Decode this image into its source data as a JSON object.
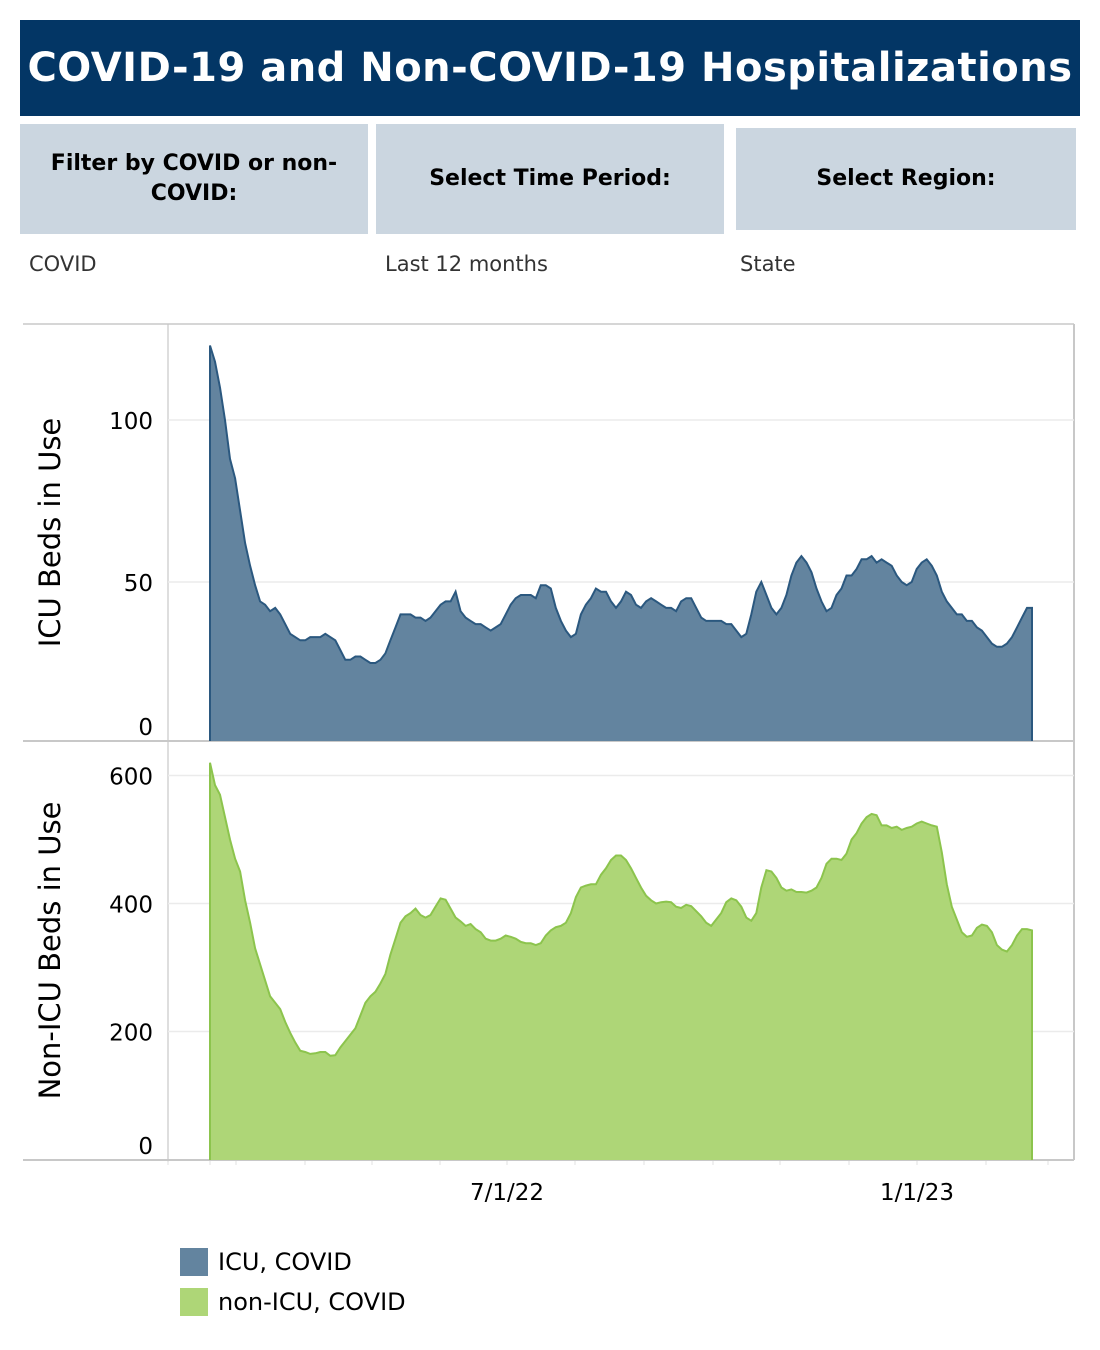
{
  "header": {
    "title": "COVID-19 and Non-COVID-19 Hospitalizations"
  },
  "filters": [
    {
      "label": "Filter by COVID or non-COVID:",
      "value": "COVID"
    },
    {
      "label": "Select Time Period:",
      "value": "Last 12 months"
    },
    {
      "label": "Select Region:",
      "value": "State"
    }
  ],
  "legend": [
    {
      "label": "ICU, COVID",
      "color": "#63849f"
    },
    {
      "label": "non-ICU, COVID",
      "color": "#aed677"
    }
  ],
  "colors": {
    "header_bg": "#033665",
    "filter_bg": "#cbd6e0",
    "icu_fill": "#63849f",
    "icu_line": "#2b587f",
    "nonicu_fill": "#aed677",
    "nonicu_line": "#8cc44d",
    "gridline": "#ebebeb",
    "frame": "#c8c8c8"
  },
  "chart_data": {
    "type": "area",
    "title": "COVID-19 and Non-COVID-19 Hospitalizations",
    "xlabel": "",
    "x_tick_labels": [
      "7/1/22",
      "1/1/23"
    ],
    "x_range_approx": [
      "2/18/22",
      "2/22/23"
    ],
    "x_sampling": "uniform, approximately every 2.2 days from 2/18/22 to 2/21/23",
    "legend_position": "bottom-left",
    "grid": true,
    "panels": [
      {
        "name": "ICU, COVID",
        "ylabel": "ICU Beds in Use",
        "yticks": [
          0,
          50,
          100
        ],
        "ylim": [
          0,
          127
        ],
        "values": [
          123,
          118,
          110,
          100,
          88,
          82,
          72,
          62,
          55,
          49,
          44,
          43,
          41,
          42,
          40,
          37,
          34,
          33,
          32,
          32,
          33,
          33,
          33,
          34,
          33,
          32,
          29,
          26,
          26,
          27,
          27,
          26,
          25,
          25,
          26,
          28,
          32,
          36,
          40,
          40,
          40,
          39,
          39,
          38,
          39,
          41,
          43,
          44,
          44,
          47,
          41,
          39,
          38,
          37,
          37,
          36,
          35,
          36,
          37,
          40,
          43,
          45,
          46,
          46,
          46,
          45,
          49,
          49,
          48,
          42,
          38,
          35,
          33,
          34,
          40,
          43,
          45,
          48,
          47,
          47,
          44,
          42,
          44,
          47,
          46,
          43,
          42,
          44,
          45,
          44,
          43,
          42,
          42,
          41,
          44,
          45,
          45,
          42,
          39,
          38,
          38,
          38,
          38,
          37,
          37,
          35,
          33,
          34,
          40,
          47,
          50,
          46,
          42,
          40,
          42,
          46,
          52,
          56,
          58,
          56,
          53,
          48,
          44,
          41,
          42,
          46,
          48,
          52,
          52,
          54,
          57,
          57,
          58,
          56,
          57,
          56,
          55,
          52,
          50,
          49,
          50,
          54,
          56,
          57,
          55,
          52,
          47,
          44,
          42,
          40,
          40,
          38,
          38,
          36,
          35,
          33,
          31,
          30,
          30,
          31,
          33,
          36,
          39,
          42,
          42
        ]
      },
      {
        "name": "non-ICU, COVID",
        "ylabel": "Non-ICU Beds in Use",
        "yticks": [
          0,
          200,
          400,
          600
        ],
        "ylim": [
          0,
          640
        ],
        "values": [
          620,
          585,
          570,
          535,
          500,
          470,
          450,
          405,
          370,
          330,
          305,
          280,
          255,
          245,
          235,
          215,
          198,
          183,
          170,
          168,
          165,
          166,
          168,
          168,
          162,
          163,
          175,
          185,
          195,
          205,
          225,
          245,
          255,
          262,
          275,
          290,
          320,
          345,
          370,
          380,
          385,
          392,
          382,
          378,
          382,
          395,
          408,
          406,
          392,
          378,
          372,
          365,
          368,
          360,
          355,
          345,
          342,
          342,
          345,
          350,
          348,
          345,
          340,
          338,
          338,
          335,
          338,
          350,
          358,
          363,
          365,
          370,
          385,
          410,
          425,
          428,
          430,
          430,
          445,
          455,
          468,
          475,
          475,
          468,
          455,
          440,
          425,
          412,
          405,
          400,
          402,
          403,
          402,
          395,
          393,
          398,
          396,
          388,
          380,
          370,
          365,
          375,
          385,
          402,
          408,
          405,
          395,
          378,
          373,
          385,
          425,
          452,
          450,
          440,
          425,
          420,
          422,
          418,
          418,
          417,
          420,
          425,
          440,
          462,
          470,
          470,
          468,
          478,
          500,
          510,
          525,
          535,
          540,
          538,
          522,
          522,
          518,
          520,
          515,
          518,
          520,
          525,
          528,
          525,
          522,
          520,
          480,
          430,
          395,
          375,
          355,
          348,
          350,
          362,
          367,
          365,
          355,
          335,
          328,
          325,
          335,
          350,
          360,
          360,
          358
        ]
      }
    ]
  }
}
